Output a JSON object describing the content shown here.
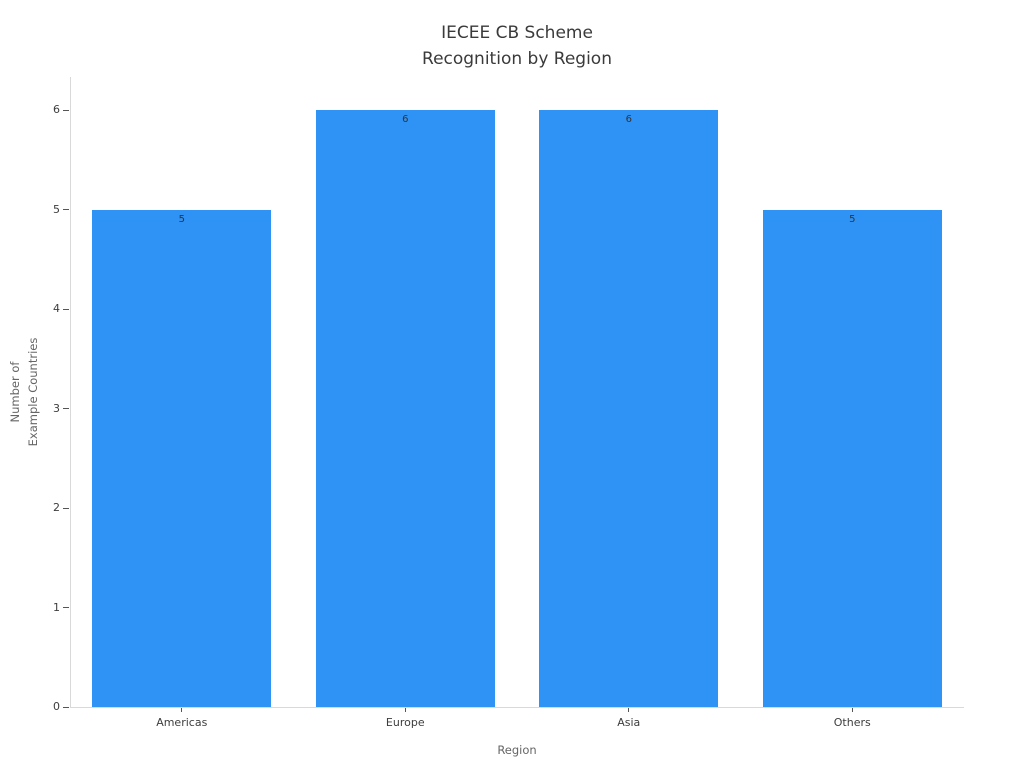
{
  "chart_data": {
    "type": "bar",
    "title": "IECEE CB Scheme\nRecognition by Region",
    "xlabel": "Region",
    "ylabel": "Number of\nExample Countries",
    "categories": [
      "Americas",
      "Europe",
      "Asia",
      "Others"
    ],
    "values": [
      5,
      6,
      6,
      5
    ],
    "value_labels": [
      "5",
      "6",
      "6",
      "5"
    ],
    "yticks": [
      0,
      1,
      2,
      3,
      4,
      5,
      6
    ],
    "ylim": [
      0,
      6.33
    ],
    "grid": false,
    "legend": "none",
    "bar_color": "#2E93F5",
    "title_color": "#3a3a3a",
    "axis_label_color": "#666666",
    "tick_label_color": "#3d3d3d",
    "spine_color": "#d9d9d9",
    "value_label_color": "#333333"
  }
}
